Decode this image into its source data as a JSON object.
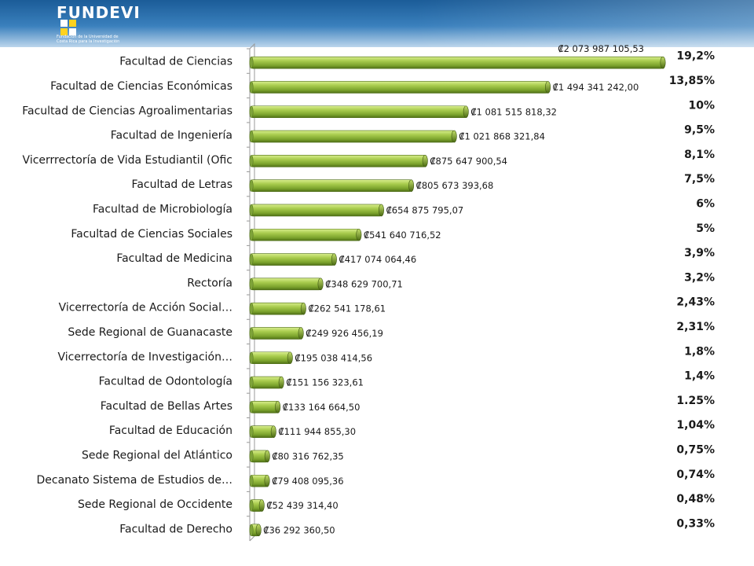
{
  "logo": {
    "brand": "FUNDEVI",
    "tagline": "Fundación de la Universidad de Costa Rica para la Investigación"
  },
  "colors": {
    "bar_light": "#c8e07a",
    "bar_mid": "#8db33a",
    "bar_dark": "#4a6a12",
    "header_blue": "#2a6fb0"
  },
  "chart_data": {
    "type": "bar",
    "orientation": "horizontal",
    "categories": [
      "Facultad de Ciencias",
      "Facultad de Ciencias Económicas",
      "Facultad de Ciencias Agroalimentarias",
      "Facultad de Ingeniería",
      "Vicerrrectoría de Vida Estudiantil (Ofic",
      "Facultad de Letras",
      "Facultad de Microbiología",
      "Facultad de Ciencias Sociales",
      "Facultad de Medicina",
      "Rectoría",
      "Vicerrectoría de Acción Social…",
      "Sede Regional de Guanacaste",
      "Vicerrectoría de Investigación…",
      "Facultad de Odontología",
      "Facultad de Bellas Artes",
      "Facultad de Educación",
      "Sede Regional del Atlántico",
      "Decanato Sistema de Estudios de…",
      "Sede Regional de Occidente",
      "Facultad de Derecho"
    ],
    "values": [
      2073987105.53,
      1494341242.0,
      1081515818.32,
      1021868321.84,
      875647900.54,
      805673393.68,
      654875795.07,
      541640716.52,
      417074064.46,
      348629700.71,
      262541178.61,
      249926456.19,
      195038414.56,
      151156323.61,
      133164664.5,
      111944855.3,
      80316762.35,
      79408095.36,
      52439314.4,
      36292360.5
    ],
    "value_labels": [
      "₡2 073 987 105,53",
      "₡1 494 341 242,00",
      "₡1 081 515 818,32",
      "₡1 021 868 321,84",
      "₡875 647 900,54",
      "₡805 673 393,68",
      "₡654 875 795,07",
      "₡541 640 716,52",
      "₡417 074 064,46",
      "₡348 629 700,71",
      "₡262 541 178,61",
      "₡249 926 456,19",
      "₡195 038 414,56",
      "₡151 156 323,61",
      "₡133 164 664,50",
      "₡111 944 855,30",
      "₡80 316 762,35",
      "₡79 408 095,36",
      "₡52 439 314,40",
      "₡36 292 360,50"
    ],
    "percent_labels": [
      "19,2%",
      "13,85%",
      "10%",
      "9,5%",
      "8,1%",
      "7,5%",
      "6%",
      "5%",
      "3,9%",
      "3,2%",
      "2,43%",
      "2,31%",
      "1,8%",
      "1,4%",
      "1.25%",
      "1,04%",
      "0,75%",
      "0,74%",
      "0,48%",
      "0,33%"
    ],
    "title": "",
    "xlabel": "",
    "ylabel": "",
    "xlim": [
      0,
      2073987105.53
    ],
    "grid": false,
    "legend": "none"
  }
}
